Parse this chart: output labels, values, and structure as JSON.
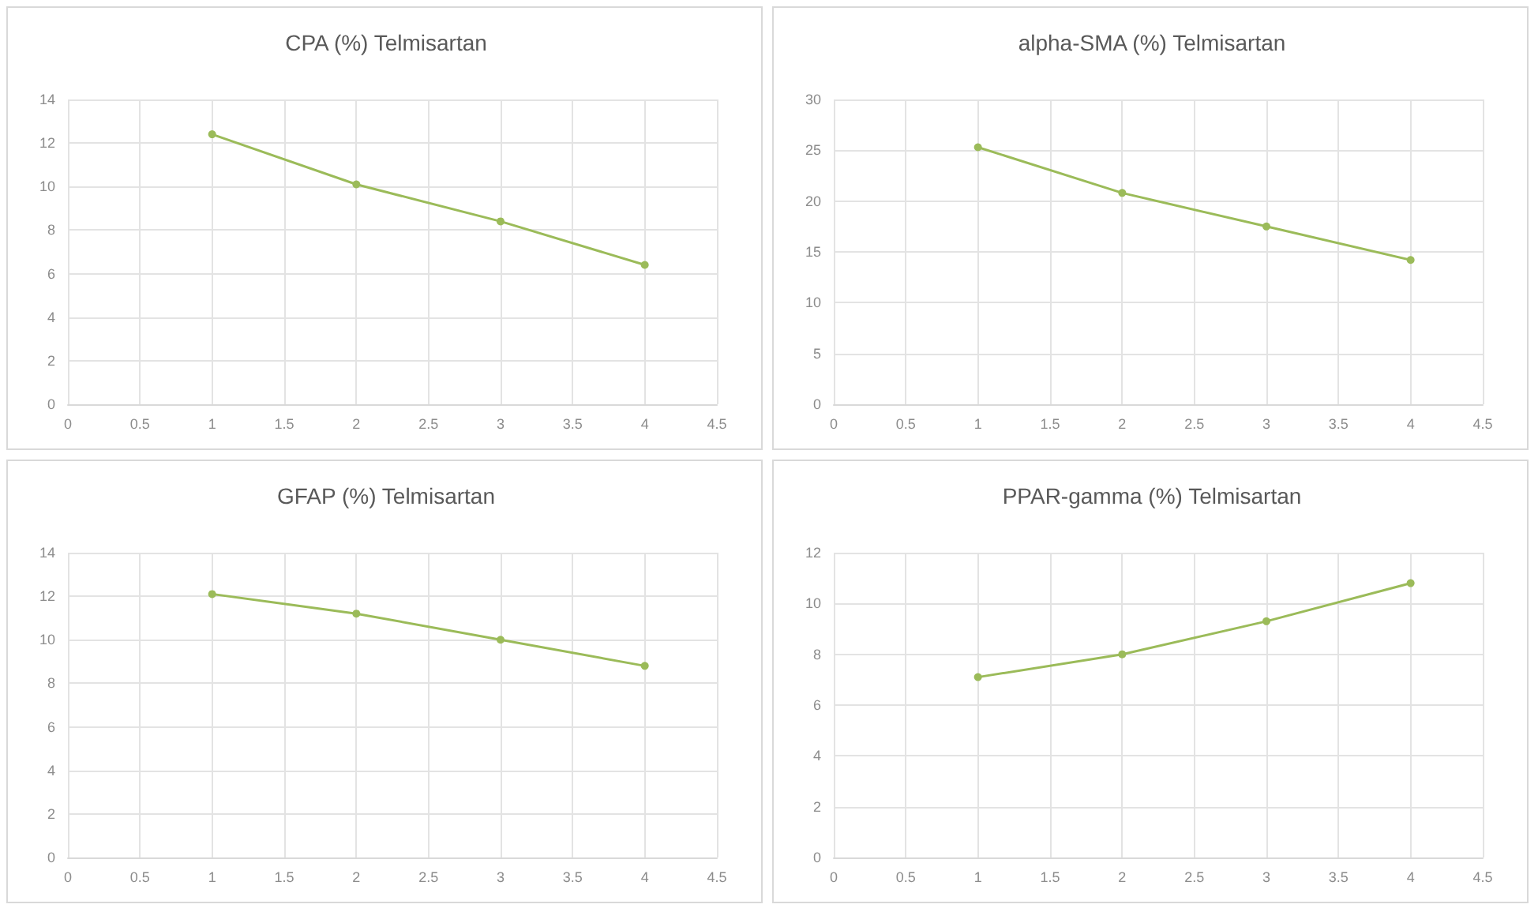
{
  "chart_data": [
    {
      "type": "line",
      "title": "CPA (%) Telmisartan",
      "x": [
        1,
        2,
        3,
        4
      ],
      "series": [
        {
          "color": "#9bbb59",
          "values": [
            12.4,
            10.1,
            8.4,
            6.4
          ]
        }
      ],
      "xlim": [
        0,
        4.5
      ],
      "xticks": [
        0,
        0.5,
        1,
        1.5,
        2,
        2.5,
        3,
        3.5,
        4,
        4.5
      ],
      "ylim": [
        0,
        14
      ],
      "yticks": [
        0,
        2,
        4,
        6,
        8,
        10,
        12,
        14
      ],
      "grid": true,
      "marker": "circle"
    },
    {
      "type": "line",
      "title": "alpha-SMA (%) Telmisartan",
      "x": [
        1,
        2,
        3,
        4
      ],
      "series": [
        {
          "color": "#9bbb59",
          "values": [
            25.3,
            20.8,
            17.5,
            14.2
          ]
        }
      ],
      "xlim": [
        0,
        4.5
      ],
      "xticks": [
        0,
        0.5,
        1,
        1.5,
        2,
        2.5,
        3,
        3.5,
        4,
        4.5
      ],
      "ylim": [
        0,
        30
      ],
      "yticks": [
        0,
        5,
        10,
        15,
        20,
        25,
        30
      ],
      "grid": true,
      "marker": "circle"
    },
    {
      "type": "line",
      "title": "GFAP (%) Telmisartan",
      "x": [
        1,
        2,
        3,
        4
      ],
      "series": [
        {
          "color": "#9bbb59",
          "values": [
            12.1,
            11.2,
            10.0,
            8.8
          ]
        }
      ],
      "xlim": [
        0,
        4.5
      ],
      "xticks": [
        0,
        0.5,
        1,
        1.5,
        2,
        2.5,
        3,
        3.5,
        4,
        4.5
      ],
      "ylim": [
        0,
        14
      ],
      "yticks": [
        0,
        2,
        4,
        6,
        8,
        10,
        12,
        14
      ],
      "grid": true,
      "marker": "circle"
    },
    {
      "type": "line",
      "title": "PPAR-gamma (%) Telmisartan",
      "x": [
        1,
        2,
        3,
        4
      ],
      "series": [
        {
          "color": "#9bbb59",
          "values": [
            7.1,
            8.0,
            9.3,
            10.8
          ]
        }
      ],
      "xlim": [
        0,
        4.5
      ],
      "xticks": [
        0,
        0.5,
        1,
        1.5,
        2,
        2.5,
        3,
        3.5,
        4,
        4.5
      ],
      "ylim": [
        0,
        12
      ],
      "yticks": [
        0,
        2,
        4,
        6,
        8,
        10,
        12
      ],
      "grid": true,
      "marker": "circle"
    }
  ]
}
